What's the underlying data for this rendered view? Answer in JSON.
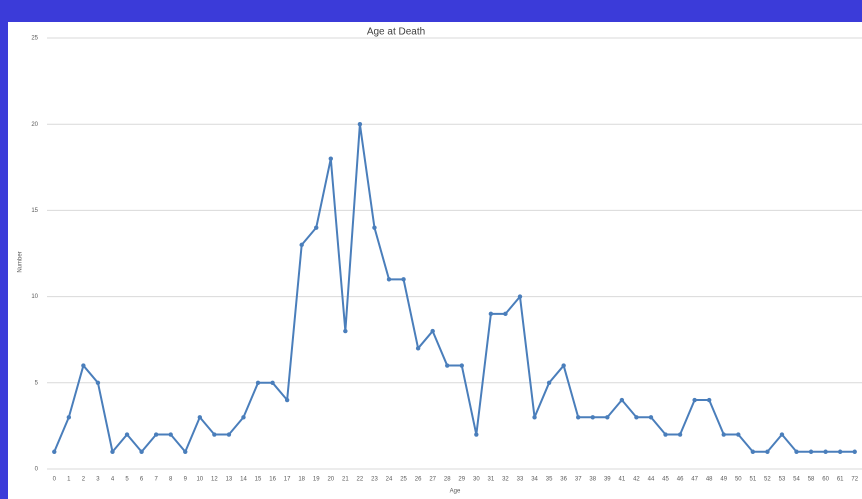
{
  "chart_data": {
    "type": "line",
    "title": "Age at Death",
    "x_label": "Age",
    "y_label": "Number",
    "categories": [
      "0",
      "1",
      "2",
      "3",
      "4",
      "5",
      "6",
      "7",
      "8",
      "9",
      "10",
      "12",
      "13",
      "14",
      "15",
      "16",
      "17",
      "18",
      "19",
      "20",
      "21",
      "22",
      "23",
      "24",
      "25",
      "26",
      "27",
      "28",
      "29",
      "30",
      "31",
      "32",
      "33",
      "34",
      "35",
      "36",
      "37",
      "38",
      "39",
      "41",
      "42",
      "44",
      "45",
      "46",
      "47",
      "48",
      "49",
      "50",
      "51",
      "52",
      "53",
      "54",
      "58",
      "60",
      "61",
      "72"
    ],
    "values": [
      1,
      3,
      6,
      5,
      1,
      2,
      1,
      2,
      2,
      1,
      3,
      2,
      2,
      3,
      5,
      5,
      4,
      13,
      14,
      18,
      8,
      20,
      14,
      11,
      11,
      7,
      8,
      6,
      6,
      2,
      9,
      9,
      10,
      3,
      5,
      6,
      3,
      3,
      3,
      4,
      3,
      3,
      2,
      2,
      4,
      4,
      2,
      2,
      1,
      1,
      2,
      1,
      1,
      1,
      1,
      1
    ],
    "color": "#4a7ebb",
    "ylim": [
      0,
      25
    ],
    "yticks": [
      0,
      5,
      10,
      15,
      20,
      25
    ],
    "grid": true
  }
}
